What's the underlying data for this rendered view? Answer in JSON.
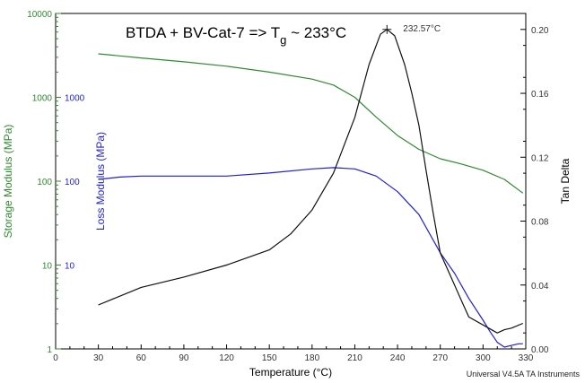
{
  "colors": {
    "storage": "#2e8b2e",
    "loss": "#1f1fd6",
    "tan": "#111111",
    "axis": "#000000"
  },
  "title": {
    "prefix": "BTDA + BV-Cat-7 =>  T",
    "subscript": "g",
    "suffix": " ~ 233°C"
  },
  "footer": "Universal V4.5A TA Instruments",
  "chart_data": {
    "type": "line",
    "x_label": "Temperature (°C)",
    "xlim": [
      0,
      330
    ],
    "x_ticks": [
      "0",
      "30",
      "60",
      "90",
      "120",
      "150",
      "180",
      "210",
      "240",
      "270",
      "300",
      "330"
    ],
    "y_left": {
      "label": "Storage Modulus (MPa)",
      "scale": "log",
      "lim": [
        1,
        10000
      ],
      "ticks": [
        "1",
        "10",
        "100",
        "1000",
        "10000"
      ]
    },
    "y_left_inner": {
      "label": "Loss Modulus (MPa)",
      "scale": "log",
      "ticks": [
        "10",
        "100",
        "1000"
      ]
    },
    "y_right": {
      "label": "Tan Delta",
      "scale": "linear",
      "lim": [
        0.0,
        0.21
      ],
      "ticks": [
        "0.00",
        "0.04",
        "0.08",
        "0.12",
        "0.16",
        "0.20"
      ]
    },
    "annotation": {
      "text": "232.57°C",
      "x": 232.57,
      "y": 0.2
    },
    "series": [
      {
        "axis": "left",
        "points": [
          [
            30,
            3300
          ],
          [
            60,
            2950
          ],
          [
            90,
            2650
          ],
          [
            120,
            2350
          ],
          [
            150,
            2000
          ],
          [
            180,
            1650
          ],
          [
            195,
            1400
          ],
          [
            210,
            1000
          ],
          [
            225,
            580
          ],
          [
            240,
            350
          ],
          [
            255,
            240
          ],
          [
            270,
            185
          ],
          [
            285,
            160
          ],
          [
            300,
            135
          ],
          [
            315,
            105
          ],
          [
            328,
            72
          ]
        ]
      },
      {
        "axis": "left",
        "points": [
          [
            30,
            105
          ],
          [
            45,
            112
          ],
          [
            60,
            115
          ],
          [
            90,
            115
          ],
          [
            120,
            115
          ],
          [
            150,
            125
          ],
          [
            180,
            140
          ],
          [
            195,
            145
          ],
          [
            210,
            140
          ],
          [
            225,
            115
          ],
          [
            240,
            75
          ],
          [
            255,
            40
          ],
          [
            270,
            14
          ],
          [
            280,
            8
          ],
          [
            290,
            4
          ],
          [
            300,
            2.2
          ],
          [
            305,
            1.6
          ],
          [
            310,
            1.2
          ],
          [
            315,
            1.05
          ],
          [
            320,
            1.1
          ],
          [
            325,
            1.15
          ],
          [
            328,
            1.15
          ]
        ]
      },
      {
        "axis": "right",
        "points": [
          [
            30,
            0.0275
          ],
          [
            60,
            0.0385
          ],
          [
            90,
            0.045
          ],
          [
            120,
            0.0525
          ],
          [
            150,
            0.062
          ],
          [
            165,
            0.072
          ],
          [
            180,
            0.087
          ],
          [
            195,
            0.11
          ],
          [
            210,
            0.145
          ],
          [
            220,
            0.178
          ],
          [
            228,
            0.197
          ],
          [
            232.57,
            0.2
          ],
          [
            238,
            0.196
          ],
          [
            245,
            0.178
          ],
          [
            250,
            0.16
          ],
          [
            255,
            0.14
          ],
          [
            260,
            0.112
          ],
          [
            265,
            0.085
          ],
          [
            270,
            0.06
          ],
          [
            275,
            0.05
          ],
          [
            280,
            0.04
          ],
          [
            285,
            0.03
          ],
          [
            290,
            0.02
          ],
          [
            300,
            0.015
          ],
          [
            310,
            0.01
          ],
          [
            315,
            0.012
          ],
          [
            320,
            0.013
          ],
          [
            328,
            0.016
          ]
        ]
      }
    ]
  }
}
